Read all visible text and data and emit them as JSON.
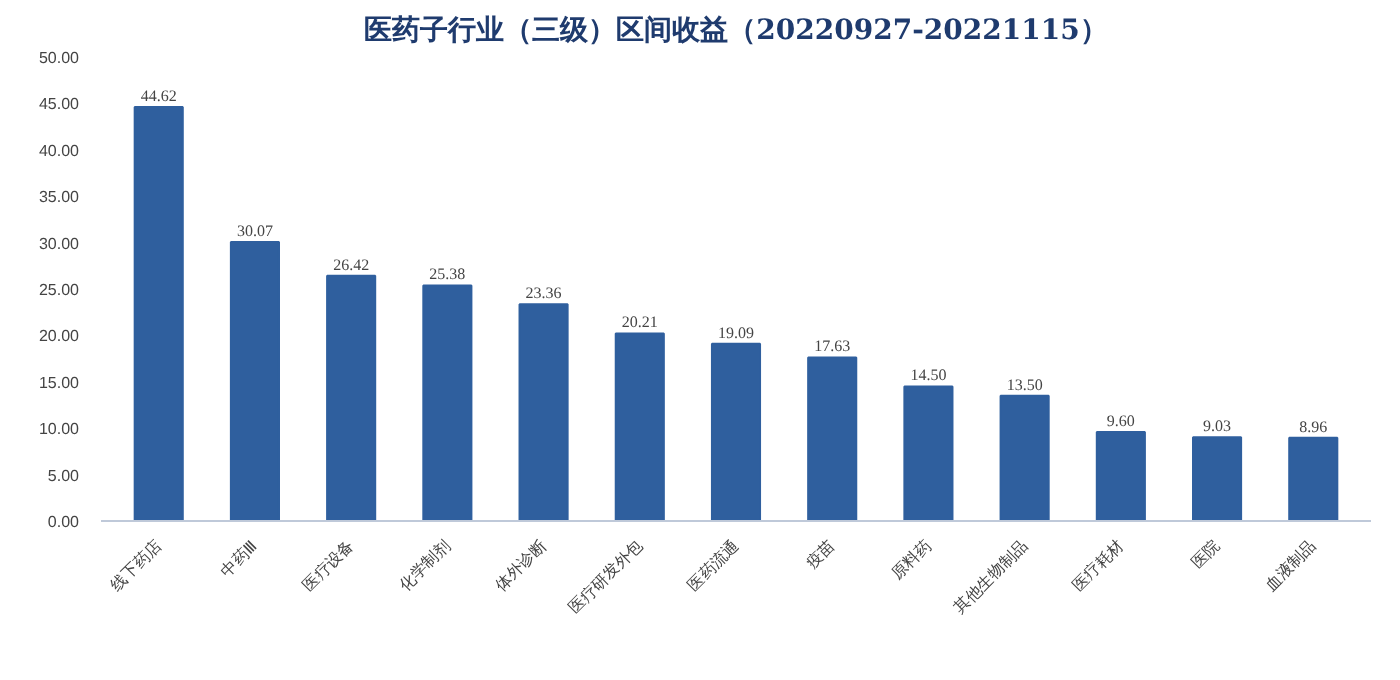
{
  "chart_data": {
    "type": "bar",
    "title": "医药子行业（三级）区间收益（20220927-20221115）",
    "categories": [
      "线下药店",
      "中药Ⅲ",
      "医疗设备",
      "化学制剂",
      "体外诊断",
      "医疗研发外包",
      "医药流通",
      "疫苗",
      "原料药",
      "其他生物制品",
      "医疗耗材",
      "医院",
      "血液制品"
    ],
    "values": [
      44.62,
      30.07,
      26.42,
      25.38,
      23.36,
      20.21,
      19.09,
      17.63,
      14.5,
      13.5,
      9.6,
      9.03,
      8.96
    ],
    "value_labels": [
      "44.62",
      "30.07",
      "26.42",
      "25.38",
      "23.36",
      "20.21",
      "19.09",
      "17.63",
      "14.50",
      "13.50",
      "9.60",
      "9.03",
      "8.96"
    ],
    "color": "#2f5f9e",
    "ylim": [
      0,
      50
    ],
    "yticks": [
      {
        "value": 0,
        "label": "0.00"
      },
      {
        "value": 5,
        "label": "5.00"
      },
      {
        "value": 10,
        "label": "10.00"
      },
      {
        "value": 15,
        "label": "15.00"
      },
      {
        "value": 20,
        "label": "20.00"
      },
      {
        "value": 25,
        "label": "25.00"
      },
      {
        "value": 30,
        "label": "30.00"
      },
      {
        "value": 35,
        "label": "35.00"
      },
      {
        "value": 40,
        "label": "40.00"
      },
      {
        "value": 45,
        "label": "45.00"
      },
      {
        "value": 50,
        "label": "50.00"
      }
    ]
  }
}
